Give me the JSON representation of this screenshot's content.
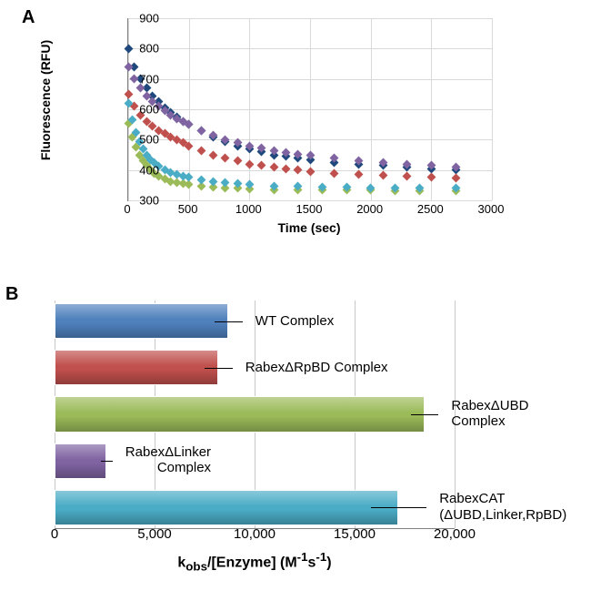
{
  "panelA": {
    "label": "A",
    "type": "scatter",
    "xlabel": "Time (sec)",
    "ylabel": "Fluorescence (RFU)",
    "xlim": [
      0,
      3000
    ],
    "xtick_step": 500,
    "ylim": [
      300,
      900
    ],
    "ytick_step": 100,
    "grid_color": "#d9d9d9",
    "axis_color": "#808080",
    "background_color": "#ffffff",
    "label_fontsize": 14,
    "tick_fontsize": 13,
    "marker_size": 3.5,
    "marker_shape": "diamond",
    "series": [
      {
        "name": "WT Complex",
        "color": "#1f497d",
        "x": [
          0,
          50,
          100,
          150,
          200,
          250,
          300,
          350,
          400,
          450,
          500,
          600,
          700,
          800,
          900,
          1000,
          1100,
          1200,
          1300,
          1400,
          1500,
          1700,
          1900,
          2100,
          2300,
          2500,
          2700
        ],
        "y": [
          800,
          740,
          700,
          670,
          645,
          625,
          605,
          590,
          575,
          560,
          550,
          530,
          510,
          495,
          480,
          470,
          460,
          450,
          445,
          440,
          435,
          425,
          420,
          415,
          410,
          405,
          400
        ]
      },
      {
        "name": "RabexΔRpBD Complex",
        "color": "#c0504d",
        "x": [
          0,
          50,
          100,
          150,
          200,
          250,
          300,
          350,
          400,
          450,
          500,
          600,
          700,
          800,
          900,
          1000,
          1100,
          1200,
          1300,
          1400,
          1500,
          1700,
          1900,
          2100,
          2300,
          2500,
          2700
        ],
        "y": [
          650,
          610,
          580,
          560,
          545,
          530,
          520,
          510,
          500,
          490,
          480,
          465,
          450,
          440,
          430,
          420,
          415,
          410,
          405,
          400,
          395,
          390,
          385,
          382,
          380,
          378,
          375
        ]
      },
      {
        "name": "RabexΔUBD Complex",
        "color": "#9bbb59",
        "x": [
          0,
          30,
          60,
          90,
          120,
          150,
          180,
          210,
          250,
          300,
          350,
          400,
          450,
          500,
          600,
          700,
          800,
          900,
          1000,
          1200,
          1400,
          1600,
          1800,
          2000,
          2200,
          2400,
          2700
        ],
        "y": [
          555,
          510,
          475,
          450,
          430,
          415,
          400,
          390,
          380,
          370,
          362,
          358,
          355,
          352,
          348,
          345,
          342,
          340,
          338,
          336,
          335,
          334,
          334,
          334,
          333,
          333,
          333
        ]
      },
      {
        "name": "RabexΔLinker Complex",
        "color": "#8064a2",
        "x": [
          0,
          50,
          100,
          150,
          200,
          250,
          300,
          350,
          400,
          450,
          500,
          600,
          700,
          800,
          900,
          1000,
          1100,
          1200,
          1300,
          1400,
          1500,
          1700,
          1900,
          2100,
          2300,
          2500,
          2700
        ],
        "y": [
          740,
          700,
          670,
          645,
          625,
          610,
          595,
          580,
          570,
          560,
          550,
          530,
          515,
          500,
          490,
          480,
          472,
          465,
          458,
          452,
          448,
          440,
          432,
          425,
          420,
          415,
          410
        ]
      },
      {
        "name": "RabexCAT",
        "color": "#4bacc6",
        "x": [
          0,
          30,
          60,
          90,
          120,
          150,
          180,
          210,
          250,
          300,
          350,
          400,
          450,
          500,
          600,
          700,
          800,
          900,
          1000,
          1200,
          1400,
          1600,
          1800,
          2000,
          2200,
          2400,
          2700
        ],
        "y": [
          620,
          565,
          525,
          495,
          470,
          450,
          435,
          425,
          412,
          400,
          392,
          385,
          380,
          376,
          368,
          362,
          358,
          355,
          352,
          348,
          346,
          344,
          343,
          342,
          340,
          340,
          340
        ]
      }
    ]
  },
  "panelB": {
    "label": "B",
    "type": "bar",
    "orientation": "horizontal",
    "xlabel": "kobs/[Enzyme] (M⁻¹s⁻¹)",
    "xlabel_html": "k<sub>obs</sub>/[Enzyme] (M<sup>-1</sup>s<sup>-1</sup>)",
    "xlim": [
      0,
      20000
    ],
    "xtick_step": 5000,
    "grid_color": "#c8c8c8",
    "axis_color": "#808080",
    "label_fontsize": 16,
    "tick_fontsize": 15,
    "bar_gap": 12,
    "bars": [
      {
        "name": "WT Complex",
        "value": 8700,
        "err": 700,
        "color": "#4f81bd",
        "label_side": "right"
      },
      {
        "name": "RabexΔRpBD Complex",
        "value": 8200,
        "err": 700,
        "color": "#c0504d",
        "label_side": "right"
      },
      {
        "name": "RabexΔUBD\nComplex",
        "value": 18500,
        "err": 700,
        "color": "#9bbb59",
        "label_side": "right"
      },
      {
        "name": "RabexΔLinker\nComplex",
        "value": 2600,
        "err": 300,
        "color": "#8064a2",
        "label_side": "left"
      },
      {
        "name": "RabexCAT\n(ΔUBD,Linker,RpBD)",
        "value": 17200,
        "err": 1400,
        "color": "#4bacc6",
        "label_side": "right"
      }
    ],
    "xticks": [
      0,
      5000,
      10000,
      15000,
      20000
    ],
    "xtick_labels": [
      "0",
      "5,000",
      "10,000",
      "15,000",
      "20,000"
    ]
  }
}
